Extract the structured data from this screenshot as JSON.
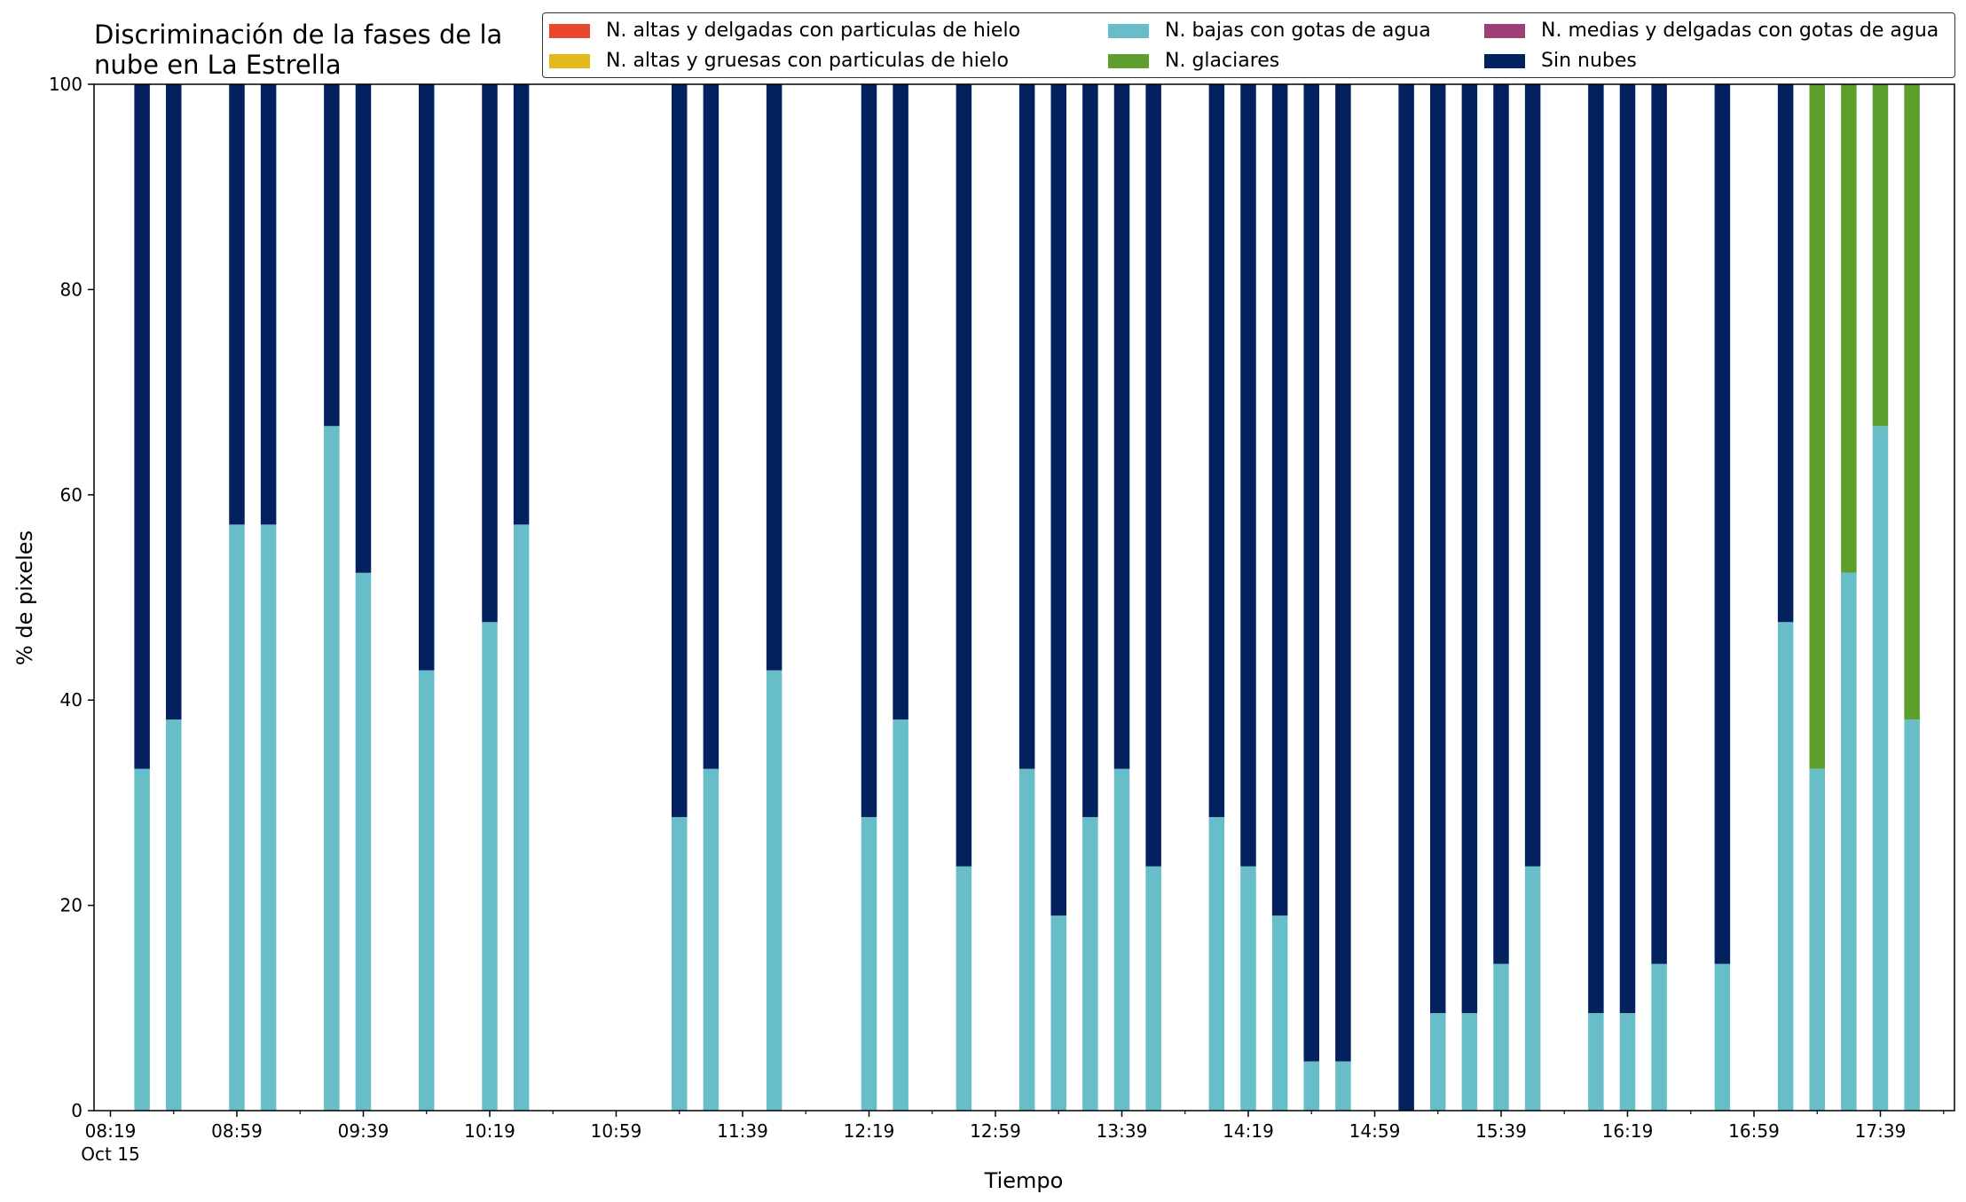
{
  "chart_data": {
    "type": "bar",
    "stacked": true,
    "title": "Discriminación de la fases de la nube en La Estrella",
    "title_lines": [
      "Discriminación de la fases de la",
      "nube en La Estrella"
    ],
    "xlabel": "Tiempo",
    "ylabel": "% de pixeles",
    "ylim": [
      0,
      100
    ],
    "yticks": [
      "0",
      "20",
      "40",
      "60",
      "80",
      "100"
    ],
    "xticks": [
      "08:19",
      "08:59",
      "09:39",
      "10:19",
      "10:59",
      "11:39",
      "12:19",
      "12:59",
      "13:39",
      "14:19",
      "14:59",
      "15:39",
      "16:19",
      "16:59",
      "17:39"
    ],
    "xtick_sub": "Oct 15",
    "legend_position": "top-right",
    "series": [
      {
        "name": "N. altas y delgadas con particulas de hielo",
        "color": "#e8492e"
      },
      {
        "name": "N. altas y gruesas con particulas de hielo",
        "color": "#e3b81c"
      },
      {
        "name": "N. bajas con gotas de agua",
        "color": "#67bec9"
      },
      {
        "name": "N. glaciares",
        "color": "#5c9f2d"
      },
      {
        "name": "N. medias y delgadas con gotas de agua",
        "color": "#a23e76"
      },
      {
        "name": "Sin nubes",
        "color": "#03205f"
      }
    ],
    "bars": [
      {
        "time": "08:29",
        "bajas": 33.3,
        "glaciares": 0,
        "sin_nubes": 66.7
      },
      {
        "time": "08:39",
        "bajas": 38.1,
        "glaciares": 0,
        "sin_nubes": 61.9
      },
      {
        "time": "08:59",
        "bajas": 57.1,
        "glaciares": 0,
        "sin_nubes": 42.9
      },
      {
        "time": "09:09",
        "bajas": 57.1,
        "glaciares": 0,
        "sin_nubes": 42.9
      },
      {
        "time": "09:29",
        "bajas": 66.7,
        "glaciares": 0,
        "sin_nubes": 33.3
      },
      {
        "time": "09:39",
        "bajas": 52.4,
        "glaciares": 0,
        "sin_nubes": 47.6
      },
      {
        "time": "09:59",
        "bajas": 42.9,
        "glaciares": 0,
        "sin_nubes": 57.1
      },
      {
        "time": "10:19",
        "bajas": 47.6,
        "glaciares": 0,
        "sin_nubes": 52.4
      },
      {
        "time": "10:29",
        "bajas": 57.1,
        "glaciares": 0,
        "sin_nubes": 42.9
      },
      {
        "time": "11:19",
        "bajas": 28.6,
        "glaciares": 0,
        "sin_nubes": 71.4
      },
      {
        "time": "11:29",
        "bajas": 33.3,
        "glaciares": 0,
        "sin_nubes": 66.7
      },
      {
        "time": "11:49",
        "bajas": 42.9,
        "glaciares": 0,
        "sin_nubes": 57.1
      },
      {
        "time": "12:19",
        "bajas": 28.6,
        "glaciares": 0,
        "sin_nubes": 71.4
      },
      {
        "time": "12:29",
        "bajas": 38.1,
        "glaciares": 0,
        "sin_nubes": 61.9
      },
      {
        "time": "12:49",
        "bajas": 23.8,
        "glaciares": 0,
        "sin_nubes": 76.2
      },
      {
        "time": "13:09",
        "bajas": 33.3,
        "glaciares": 0,
        "sin_nubes": 66.7
      },
      {
        "time": "13:19",
        "bajas": 19.0,
        "glaciares": 0,
        "sin_nubes": 81.0
      },
      {
        "time": "13:29",
        "bajas": 28.6,
        "glaciares": 0,
        "sin_nubes": 71.4
      },
      {
        "time": "13:39",
        "bajas": 33.3,
        "glaciares": 0,
        "sin_nubes": 66.7
      },
      {
        "time": "13:49",
        "bajas": 23.8,
        "glaciares": 0,
        "sin_nubes": 76.2
      },
      {
        "time": "14:09",
        "bajas": 28.6,
        "glaciares": 0,
        "sin_nubes": 71.4
      },
      {
        "time": "14:19",
        "bajas": 23.8,
        "glaciares": 0,
        "sin_nubes": 76.2
      },
      {
        "time": "14:29",
        "bajas": 19.0,
        "glaciares": 0,
        "sin_nubes": 81.0
      },
      {
        "time": "14:39",
        "bajas": 4.8,
        "glaciares": 0,
        "sin_nubes": 95.2
      },
      {
        "time": "14:49",
        "bajas": 4.8,
        "glaciares": 0,
        "sin_nubes": 95.2
      },
      {
        "time": "15:09",
        "bajas": 0,
        "glaciares": 0,
        "sin_nubes": 100
      },
      {
        "time": "15:19",
        "bajas": 9.5,
        "glaciares": 0,
        "sin_nubes": 90.5
      },
      {
        "time": "15:29",
        "bajas": 9.5,
        "glaciares": 0,
        "sin_nubes": 90.5
      },
      {
        "time": "15:39",
        "bajas": 14.3,
        "glaciares": 0,
        "sin_nubes": 85.7
      },
      {
        "time": "15:49",
        "bajas": 23.8,
        "glaciares": 0,
        "sin_nubes": 76.2
      },
      {
        "time": "16:09",
        "bajas": 9.5,
        "glaciares": 0,
        "sin_nubes": 90.5
      },
      {
        "time": "16:19",
        "bajas": 9.5,
        "glaciares": 0,
        "sin_nubes": 90.5
      },
      {
        "time": "16:29",
        "bajas": 14.3,
        "glaciares": 0,
        "sin_nubes": 85.7
      },
      {
        "time": "16:49",
        "bajas": 14.3,
        "glaciares": 0,
        "sin_nubes": 85.7
      },
      {
        "time": "17:09",
        "bajas": 47.6,
        "glaciares": 0,
        "sin_nubes": 52.4
      },
      {
        "time": "17:19",
        "bajas": 33.3,
        "glaciares": 66.7,
        "sin_nubes": 0
      },
      {
        "time": "17:29",
        "bajas": 52.4,
        "glaciares": 47.6,
        "sin_nubes": 0
      },
      {
        "time": "17:39",
        "bajas": 66.7,
        "glaciares": 33.3,
        "sin_nubes": 0
      },
      {
        "time": "17:49",
        "bajas": 38.1,
        "glaciares": 61.9,
        "sin_nubes": 0
      }
    ]
  }
}
